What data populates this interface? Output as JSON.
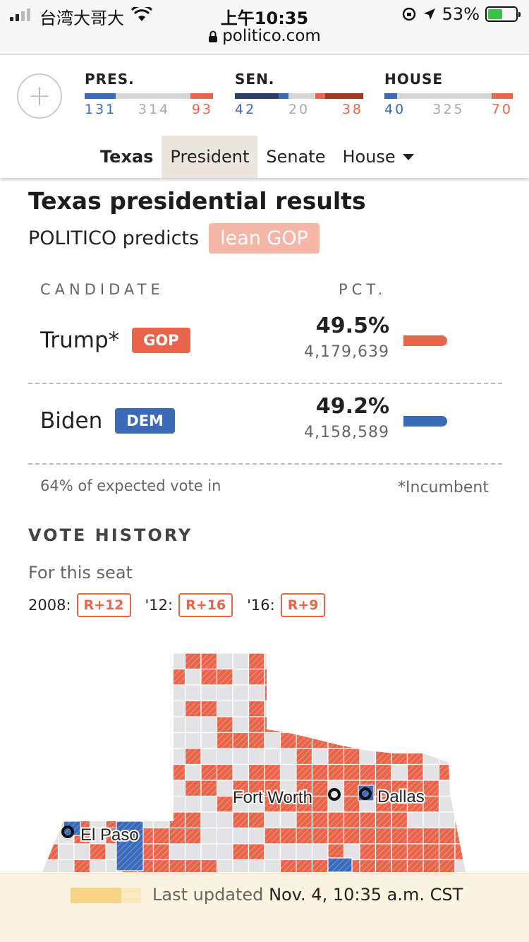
{
  "status_bar": {
    "carrier": "台湾大哥大",
    "time": "上午10:35",
    "domain": "politico.com",
    "battery": "53%"
  },
  "results": [
    {
      "label": "PRES.",
      "dem": "131",
      "other": "314",
      "gop": "93"
    },
    {
      "label": "SEN.",
      "dem": "42",
      "other": "20",
      "gop": "38"
    },
    {
      "label": "HOUSE",
      "dem": "40",
      "other": "325",
      "gop": "70"
    }
  ],
  "tabs": [
    "Texas",
    "President",
    "Senate",
    "House"
  ],
  "page": {
    "title": "Texas presidential results",
    "predicts_label": "POLITICO predicts",
    "predicts_badge": "lean GOP"
  },
  "table": {
    "col_candidate": "CANDIDATE",
    "col_pct": "PCT.",
    "rows": [
      {
        "name": "Trump*",
        "party": "GOP",
        "pct": "49.5%",
        "votes": "4,179,639"
      },
      {
        "name": "Biden",
        "party": "DEM",
        "pct": "49.2%",
        "votes": "4,158,589"
      }
    ],
    "expected": "64% of expected vote in",
    "incumbent_note": "*Incumbent"
  },
  "vote_history": {
    "heading": "VOTE HISTORY",
    "subheading": "For this seat",
    "items": [
      {
        "year": "2008:",
        "margin": "R+12"
      },
      {
        "year": "'12:",
        "margin": "R+16"
      },
      {
        "year": "'16:",
        "margin": "R+9"
      }
    ]
  },
  "map": {
    "cities": [
      "Fort Worth",
      "Dallas",
      "El Paso"
    ]
  },
  "footer": {
    "prefix": "Last updated",
    "timestamp": "Nov. 4, 10:35 a.m. CST"
  },
  "colors": {
    "gop": "#e8654c",
    "dem": "#3a6ab8",
    "lean_gop": "#f4b7a7",
    "tab_active": "#ece7de"
  }
}
